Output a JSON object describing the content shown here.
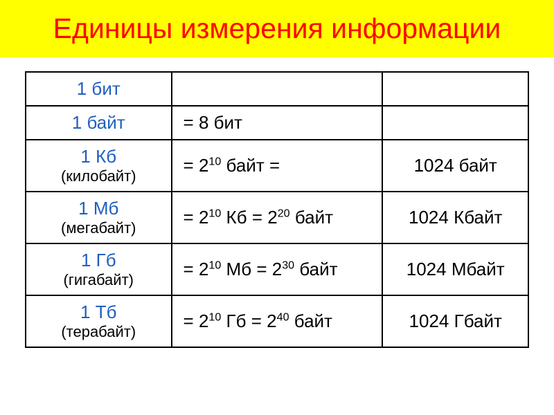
{
  "title": {
    "text": "Единицы измерения информации",
    "bg_color": "#ffff00",
    "text_color": "#ff0000",
    "fontsize": 41
  },
  "table": {
    "border_color": "#000000",
    "unit_color": "#1f5fbf",
    "value_color": "#000000",
    "unit_fontsize": 26,
    "sub_fontsize": 22,
    "value_fontsize": 26,
    "rows": [
      {
        "unit": "1 бит",
        "sub": "",
        "formula_html": "",
        "equiv": ""
      },
      {
        "unit": "1 байт",
        "sub": "",
        "formula_html": "= 8 бит",
        "equiv": ""
      },
      {
        "unit": "1 Кб",
        "sub": "(килобайт)",
        "formula_html": "= 2<sup>10</sup> байт =",
        "equiv": "1024 байт"
      },
      {
        "unit": "1 Мб",
        "sub": "(мегабайт)",
        "formula_html": "= 2<sup>10</sup> Кб = 2<sup>20</sup> байт",
        "equiv": "1024 Кбайт"
      },
      {
        "unit": "1 Гб",
        "sub": "(гигабайт)",
        "formula_html": "= 2<sup>10</sup> Мб = 2<sup>30</sup> байт",
        "equiv": "1024 Мбайт"
      },
      {
        "unit": "1 Тб",
        "sub": "(терабайт)",
        "formula_html": "= 2<sup>10</sup> Гб = 2<sup>40</sup> байт",
        "equiv": "1024 Гбайт"
      }
    ]
  }
}
